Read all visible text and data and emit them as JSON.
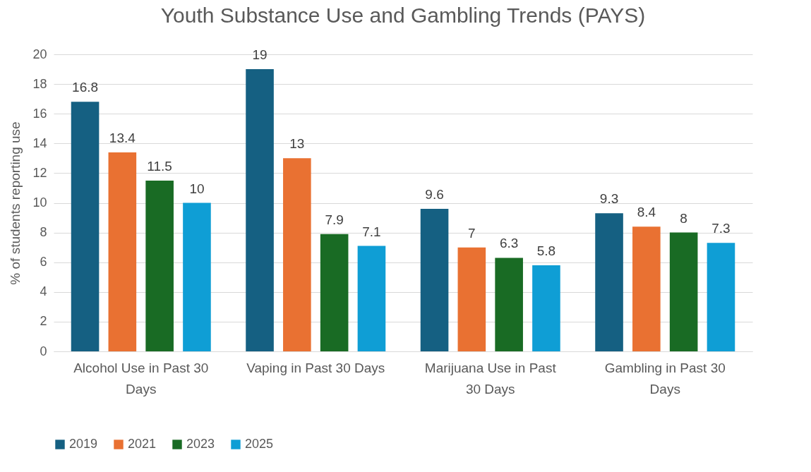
{
  "chart_data": {
    "type": "bar",
    "title": "Youth Substance Use and Gambling Trends (PAYS)",
    "ylabel": "% of students reporting use",
    "categories": [
      "Alcohol Use in Past 30 Days",
      "Vaping in Past 30 Days",
      "Marijuana Use in Past 30 Days",
      "Gambling in Past 30 Days"
    ],
    "series": [
      {
        "name": "2019",
        "color": "#156082",
        "values": [
          16.8,
          19,
          9.6,
          9.3
        ]
      },
      {
        "name": "2021",
        "color": "#e97132",
        "values": [
          13.4,
          13,
          7,
          8.4
        ]
      },
      {
        "name": "2023",
        "color": "#196b24",
        "values": [
          11.5,
          7.9,
          6.3,
          8
        ]
      },
      {
        "name": "2025",
        "color": "#0f9ed5",
        "values": [
          10,
          7.1,
          5.8,
          7.3
        ]
      }
    ],
    "ylim": [
      0,
      20
    ],
    "yticks": [
      0,
      2,
      4,
      6,
      8,
      10,
      12,
      14,
      16,
      18,
      20
    ],
    "grid": "y",
    "legend": "bottom",
    "data_labels": true
  }
}
